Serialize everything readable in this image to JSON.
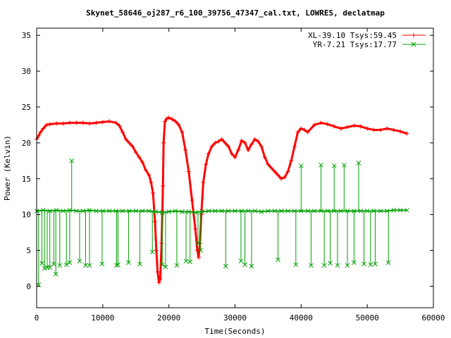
{
  "chart_data": {
    "type": "line",
    "title": "Skynet_58646_oj287_r6_100_39756_47347_cal.txt, LOWRES, declatmap",
    "xlabel": "Time(Seconds)",
    "ylabel": "Power (Kelvin)",
    "xlim": [
      0,
      60000
    ],
    "ylim": [
      -3,
      36
    ],
    "xticks": [
      0,
      10000,
      20000,
      30000,
      40000,
      50000,
      60000
    ],
    "xtick_labels": [
      "0",
      "10000",
      "20000",
      "30000",
      "40000",
      "50000",
      "60000"
    ],
    "yticks": [
      0,
      5,
      10,
      15,
      20,
      25,
      30,
      35
    ],
    "ytick_labels": [
      "0",
      "5",
      "10",
      "15",
      "20",
      "25",
      "30",
      "35"
    ],
    "grid": false,
    "legend_position": "top-right",
    "series": [
      {
        "name": "XL-39.10 Tsys:59.45",
        "color": "#ff0000",
        "marker": "plus",
        "x": [
          0,
          300,
          600,
          1000,
          1500,
          2000,
          3000,
          4000,
          5000,
          6000,
          7000,
          8000,
          9000,
          10000,
          11000,
          12000,
          12500,
          13000,
          13500,
          14000,
          14500,
          15000,
          15500,
          16000,
          16500,
          17000,
          17300,
          17600,
          17900,
          18100,
          18300,
          18500,
          18700,
          18900,
          19100,
          19200,
          19400,
          19700,
          20000,
          20500,
          21000,
          21500,
          22000,
          22500,
          23000,
          23500,
          24000,
          24300,
          24500,
          24700,
          24900,
          25200,
          25600,
          26000,
          26500,
          27000,
          27500,
          28000,
          28500,
          29000,
          29500,
          30000,
          30500,
          31000,
          31500,
          32000,
          32500,
          33000,
          33500,
          34000,
          34500,
          35000,
          35500,
          36000,
          36500,
          37000,
          37500,
          38000,
          38500,
          39000,
          39500,
          40000,
          40500,
          41000,
          42000,
          43000,
          44000,
          45000,
          46000,
          47000,
          48000,
          49000,
          50000,
          51000,
          52000,
          53000,
          54000,
          55000,
          56000
        ],
        "y": [
          20.5,
          21.0,
          21.5,
          22.0,
          22.5,
          22.6,
          22.7,
          22.7,
          22.8,
          22.8,
          22.8,
          22.7,
          22.8,
          22.9,
          23.0,
          22.8,
          22.4,
          21.5,
          20.5,
          20.0,
          19.5,
          18.7,
          18.0,
          17.3,
          16.2,
          15.5,
          14.5,
          13.0,
          9.0,
          5.0,
          2.0,
          0.5,
          1.0,
          6.0,
          14.0,
          20.0,
          23.0,
          23.4,
          23.5,
          23.3,
          23.0,
          22.5,
          21.5,
          19.0,
          16.0,
          12.0,
          8.0,
          5.0,
          4.0,
          6.0,
          10.0,
          14.5,
          17.0,
          18.5,
          19.5,
          20.0,
          20.2,
          20.5,
          20.0,
          19.5,
          18.5,
          18.0,
          19.0,
          20.3,
          20.0,
          19.0,
          19.8,
          20.5,
          20.2,
          19.5,
          18.0,
          17.0,
          16.5,
          16.0,
          15.5,
          15.0,
          15.2,
          16.0,
          17.5,
          19.5,
          21.5,
          22.0,
          21.8,
          21.5,
          22.5,
          22.8,
          22.6,
          22.3,
          22.0,
          22.2,
          22.4,
          22.3,
          22.0,
          21.8,
          21.8,
          22.0,
          21.8,
          21.6,
          21.3
        ]
      },
      {
        "name": "YR-7.21 Tsys:17.77",
        "color": "#00a000",
        "marker": "cross",
        "x": [
          0,
          1000,
          2000,
          3000,
          4000,
          5000,
          6000,
          7000,
          8000,
          9000,
          10000,
          11000,
          12000,
          13000,
          14000,
          15000,
          16000,
          17000,
          18000,
          19000,
          20000,
          21000,
          22000,
          23000,
          24000,
          25000,
          26000,
          27000,
          28000,
          29000,
          30000,
          31000,
          32000,
          33000,
          34000,
          35000,
          36000,
          37000,
          38000,
          39000,
          40000,
          41000,
          42000,
          43000,
          44000,
          45000,
          46000,
          47000,
          48000,
          49000,
          50000,
          51000,
          52000,
          53000,
          54000,
          55000,
          56000
        ],
        "y": [
          10.5,
          10.6,
          10.5,
          10.6,
          10.5,
          10.6,
          10.5,
          10.5,
          10.6,
          10.5,
          10.5,
          10.5,
          10.5,
          10.5,
          10.5,
          10.5,
          10.5,
          10.5,
          10.4,
          10.3,
          10.4,
          10.5,
          10.4,
          10.4,
          10.3,
          10.4,
          10.5,
          10.5,
          10.5,
          10.5,
          10.5,
          10.5,
          10.5,
          10.5,
          10.4,
          10.5,
          10.5,
          10.5,
          10.5,
          10.5,
          10.5,
          10.5,
          10.5,
          10.5,
          10.5,
          10.5,
          10.5,
          10.5,
          10.5,
          10.5,
          10.5,
          10.5,
          10.5,
          10.5,
          10.6,
          10.6,
          10.6
        ],
        "spikes": [
          {
            "x": 300,
            "y": 0.2
          },
          {
            "x": 800,
            "y": 3.2
          },
          {
            "x": 1200,
            "y": 2.5
          },
          {
            "x": 1600,
            "y": 2.6
          },
          {
            "x": 2000,
            "y": 2.6
          },
          {
            "x": 2600,
            "y": 3.1
          },
          {
            "x": 2900,
            "y": 1.7
          },
          {
            "x": 3500,
            "y": 2.9
          },
          {
            "x": 4500,
            "y": 3.0
          },
          {
            "x": 5000,
            "y": 3.3
          },
          {
            "x": 5300,
            "y": 17.5
          },
          {
            "x": 6500,
            "y": 3.5
          },
          {
            "x": 7400,
            "y": 2.9
          },
          {
            "x": 8000,
            "y": 2.9
          },
          {
            "x": 9900,
            "y": 3.1
          },
          {
            "x": 12100,
            "y": 2.9
          },
          {
            "x": 12300,
            "y": 3.0
          },
          {
            "x": 13900,
            "y": 3.3
          },
          {
            "x": 15600,
            "y": 3.1
          },
          {
            "x": 17500,
            "y": 4.8
          },
          {
            "x": 19000,
            "y": 3.0
          },
          {
            "x": 19500,
            "y": 2.7
          },
          {
            "x": 21200,
            "y": 2.9
          },
          {
            "x": 22600,
            "y": 3.5
          },
          {
            "x": 23200,
            "y": 3.4
          },
          {
            "x": 24400,
            "y": 6.0
          },
          {
            "x": 24800,
            "y": 5.0
          },
          {
            "x": 28600,
            "y": 2.8
          },
          {
            "x": 30900,
            "y": 3.5
          },
          {
            "x": 31500,
            "y": 3.0
          },
          {
            "x": 32500,
            "y": 2.8
          },
          {
            "x": 36500,
            "y": 3.7
          },
          {
            "x": 39200,
            "y": 3.0
          },
          {
            "x": 40000,
            "y": 16.8
          },
          {
            "x": 41500,
            "y": 2.9
          },
          {
            "x": 43000,
            "y": 16.9
          },
          {
            "x": 43500,
            "y": 2.9
          },
          {
            "x": 44400,
            "y": 3.2
          },
          {
            "x": 45000,
            "y": 16.8
          },
          {
            "x": 45500,
            "y": 2.9
          },
          {
            "x": 46500,
            "y": 16.9
          },
          {
            "x": 47000,
            "y": 2.9
          },
          {
            "x": 48000,
            "y": 3.3
          },
          {
            "x": 48700,
            "y": 17.2
          },
          {
            "x": 49500,
            "y": 3.1
          },
          {
            "x": 50500,
            "y": 3.0
          },
          {
            "x": 51200,
            "y": 3.1
          },
          {
            "x": 53200,
            "y": 3.3
          }
        ]
      }
    ]
  }
}
